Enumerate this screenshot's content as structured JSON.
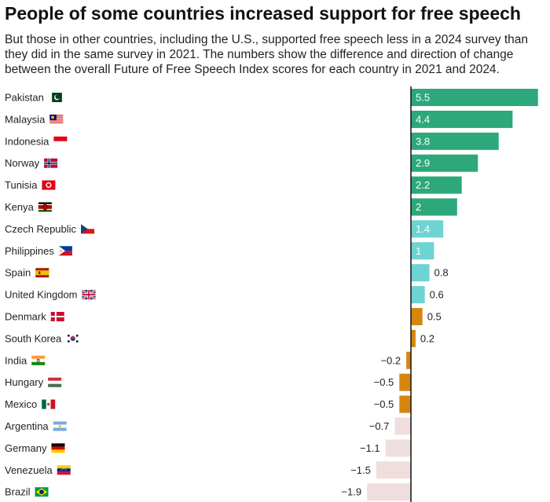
{
  "header": {
    "title": "People of some countries increased support for free speech",
    "subtitle": "But those in other countries, including the U.S., supported free speech less in a 2024 survey than they did in the same survey in 2021. The numbers show the difference and direction of change between the overall Future of Free Speech Index scores for each country in 2021 and 2024."
  },
  "colors": {
    "strong_positive": "#2ca87b",
    "mild_positive": "#6dd3d3",
    "small_change": "#d6860f",
    "negative": "#f0dede",
    "axis": "#111111",
    "label_on_bar": "#ffffff",
    "label_outside": "#222222"
  },
  "chart_data": {
    "type": "bar",
    "orientation": "horizontal",
    "title": "People of some countries increased support for free speech",
    "xlabel": "",
    "ylabel": "",
    "xlim": [
      -2.9,
      5.6
    ],
    "grid": false,
    "categories": [
      "Pakistan",
      "Malaysia",
      "Indonesia",
      "Norway",
      "Tunisia",
      "Kenya",
      "Czech Republic",
      "Philippines",
      "Spain",
      "United Kingdom",
      "Denmark",
      "South Korea",
      "India",
      "Hungary",
      "Mexico",
      "Argentina",
      "Germany",
      "Venezuela",
      "Brazil"
    ],
    "values": [
      5.5,
      4.4,
      3.8,
      2.9,
      2.2,
      2,
      1.4,
      1,
      0.8,
      0.6,
      0.5,
      0.2,
      -0.2,
      -0.5,
      -0.5,
      -0.7,
      -1.1,
      -1.5,
      -1.9
    ],
    "value_labels": [
      "5.5",
      "4.4",
      "3.8",
      "2.9",
      "2.2",
      "2",
      "1.4",
      "1",
      "0.8",
      "0.6",
      "0.5",
      "0.2",
      "−0.2",
      "−0.5",
      "−0.5",
      "−0.7",
      "−1.1",
      "−1.5",
      "−1.9"
    ],
    "color_groups": [
      "strong_positive",
      "strong_positive",
      "strong_positive",
      "strong_positive",
      "strong_positive",
      "strong_positive",
      "mild_positive",
      "mild_positive",
      "mild_positive",
      "mild_positive",
      "small_change",
      "small_change",
      "small_change",
      "small_change",
      "small_change",
      "negative",
      "negative",
      "negative",
      "negative"
    ],
    "label_inside": [
      true,
      true,
      true,
      true,
      true,
      true,
      true,
      true,
      false,
      false,
      false,
      false,
      false,
      false,
      false,
      false,
      false,
      false,
      false
    ],
    "flags": [
      "pakistan-flag-icon",
      "malaysia-flag-icon",
      "indonesia-flag-icon",
      "norway-flag-icon",
      "tunisia-flag-icon",
      "kenya-flag-icon",
      "czech-republic-flag-icon",
      "philippines-flag-icon",
      "spain-flag-icon",
      "united-kingdom-flag-icon",
      "denmark-flag-icon",
      "south-korea-flag-icon",
      "india-flag-icon",
      "hungary-flag-icon",
      "mexico-flag-icon",
      "argentina-flag-icon",
      "germany-flag-icon",
      "venezuela-flag-icon",
      "brazil-flag-icon"
    ]
  }
}
